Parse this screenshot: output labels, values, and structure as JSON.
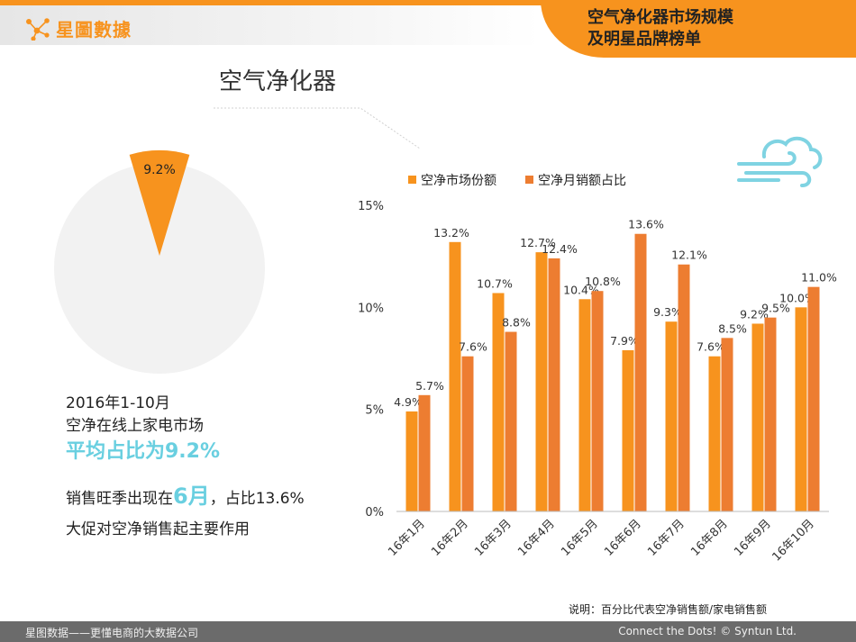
{
  "header": {
    "logo_text": "星圖數據",
    "title_line1": "空气净化器市场规模",
    "title_line2": "及明星品牌榜单"
  },
  "pie": {
    "title": "空气净化器",
    "label": "9.2%",
    "share_percent": 9.2,
    "color": "#f7931e",
    "rest_color": "#f2f2f2"
  },
  "description": {
    "line1": "2016年1-10月",
    "line2": "空净在线上家电市场",
    "line3": "平均占比为9.2%",
    "line4_prefix": "销售旺季出现在",
    "line4_highlight": "6月",
    "line4_suffix": "，占比13.6%",
    "line5": "大促对空净销售起主要作用"
  },
  "chart_data": {
    "type": "bar",
    "categories": [
      "16年1月",
      "16年2月",
      "16年3月",
      "16年4月",
      "16年5月",
      "16年6月",
      "16年7月",
      "16年8月",
      "16年9月",
      "16年10月"
    ],
    "series": [
      {
        "name": "空净市场份额",
        "color": "#f7931e",
        "values": [
          4.9,
          13.2,
          10.7,
          12.7,
          10.4,
          7.9,
          9.3,
          7.6,
          9.2,
          10.0
        ],
        "labels": [
          "4.9%",
          "13.2%",
          "10.7%",
          "12.7%",
          "10.4%",
          "7.9%",
          "9.3%",
          "7.6%",
          "9.2%",
          "10.0%"
        ]
      },
      {
        "name": "空净月销额占比",
        "color": "#ed7d31",
        "values": [
          5.7,
          7.6,
          8.8,
          12.4,
          10.8,
          13.6,
          12.1,
          8.5,
          9.5,
          11.0
        ],
        "labels": [
          "5.7%",
          "7.6%",
          "8.8%",
          "12.4%",
          "10.8%",
          "13.6%",
          "12.1%",
          "8.5%",
          "9.5%",
          "11.0%"
        ]
      }
    ],
    "yticks": [
      {
        "value": 0,
        "label": "0%"
      },
      {
        "value": 5,
        "label": "5%"
      },
      {
        "value": 10,
        "label": "10%"
      },
      {
        "value": 15,
        "label": "15%"
      }
    ],
    "ylim": [
      0,
      15
    ],
    "grid": false,
    "legend": "top"
  },
  "note": "说明：百分比代表空净销售额/家电销售额",
  "footer": {
    "left": "星图数据——更懂电商的大数据公司",
    "right": "Connect the Dots! © Syntun Ltd."
  }
}
